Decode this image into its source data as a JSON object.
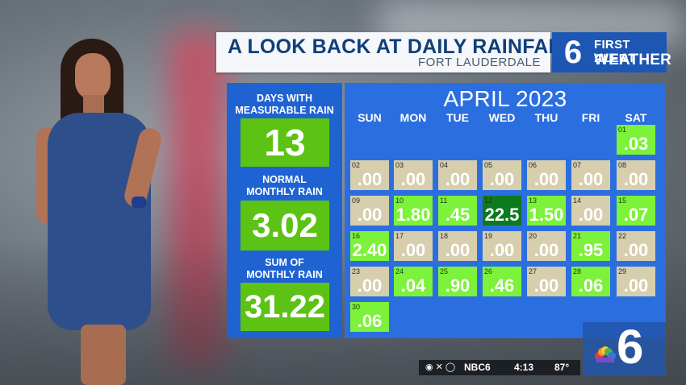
{
  "title_bar": {
    "title": "A LOOK BACK  AT DAILY RAINFALL",
    "subtitle": "FORT LAUDERDALE"
  },
  "brand": {
    "channel": "6",
    "line1": "FIRST ALERT",
    "line2": "WEATHER"
  },
  "stats": [
    {
      "label_1": "DAYS WITH",
      "label_2": "MEASURABLE RAIN",
      "value": "13"
    },
    {
      "label_1": "NORMAL",
      "label_2": "MONTHLY RAIN",
      "value": "3.02"
    },
    {
      "label_1": "SUM OF",
      "label_2": "MONTHLY RAIN",
      "value": "31.22"
    }
  ],
  "calendar": {
    "month": "APRIL 2023",
    "days_of_week": [
      "SUN",
      "MON",
      "TUE",
      "WED",
      "THU",
      "FRI",
      "SAT"
    ],
    "days": [
      {
        "d": "01",
        "v": ".03"
      },
      {
        "d": "02",
        "v": ".00"
      },
      {
        "d": "03",
        "v": ".00"
      },
      {
        "d": "04",
        "v": ".00"
      },
      {
        "d": "05",
        "v": ".00"
      },
      {
        "d": "06",
        "v": ".00"
      },
      {
        "d": "07",
        "v": ".00"
      },
      {
        "d": "08",
        "v": ".00"
      },
      {
        "d": "09",
        "v": ".00"
      },
      {
        "d": "10",
        "v": "1.80"
      },
      {
        "d": "11",
        "v": ".45"
      },
      {
        "d": "12",
        "v": "22.5"
      },
      {
        "d": "13",
        "v": "1.50"
      },
      {
        "d": "14",
        "v": ".00"
      },
      {
        "d": "15",
        "v": ".07"
      },
      {
        "d": "16",
        "v": "2.40"
      },
      {
        "d": "17",
        "v": ".00"
      },
      {
        "d": "18",
        "v": ".00"
      },
      {
        "d": "19",
        "v": ".00"
      },
      {
        "d": "20",
        "v": ".00"
      },
      {
        "d": "21",
        "v": ".95"
      },
      {
        "d": "22",
        "v": ".00"
      },
      {
        "d": "23",
        "v": ".00"
      },
      {
        "d": "24",
        "v": ".04"
      },
      {
        "d": "25",
        "v": ".90"
      },
      {
        "d": "26",
        "v": ".46"
      },
      {
        "d": "27",
        "v": ".00"
      },
      {
        "d": "28",
        "v": ".06"
      },
      {
        "d": "29",
        "v": ".00"
      },
      {
        "d": "30",
        "v": ".06"
      }
    ],
    "colors": {
      "zero": "#d7ceae",
      "rain": "#7df23b",
      "max": "#0d7a1f"
    }
  },
  "ticker": {
    "social_handle": "NBC6",
    "time": "4:13",
    "temperature": "87°"
  },
  "corner_bug": {
    "channel": "6"
  }
}
